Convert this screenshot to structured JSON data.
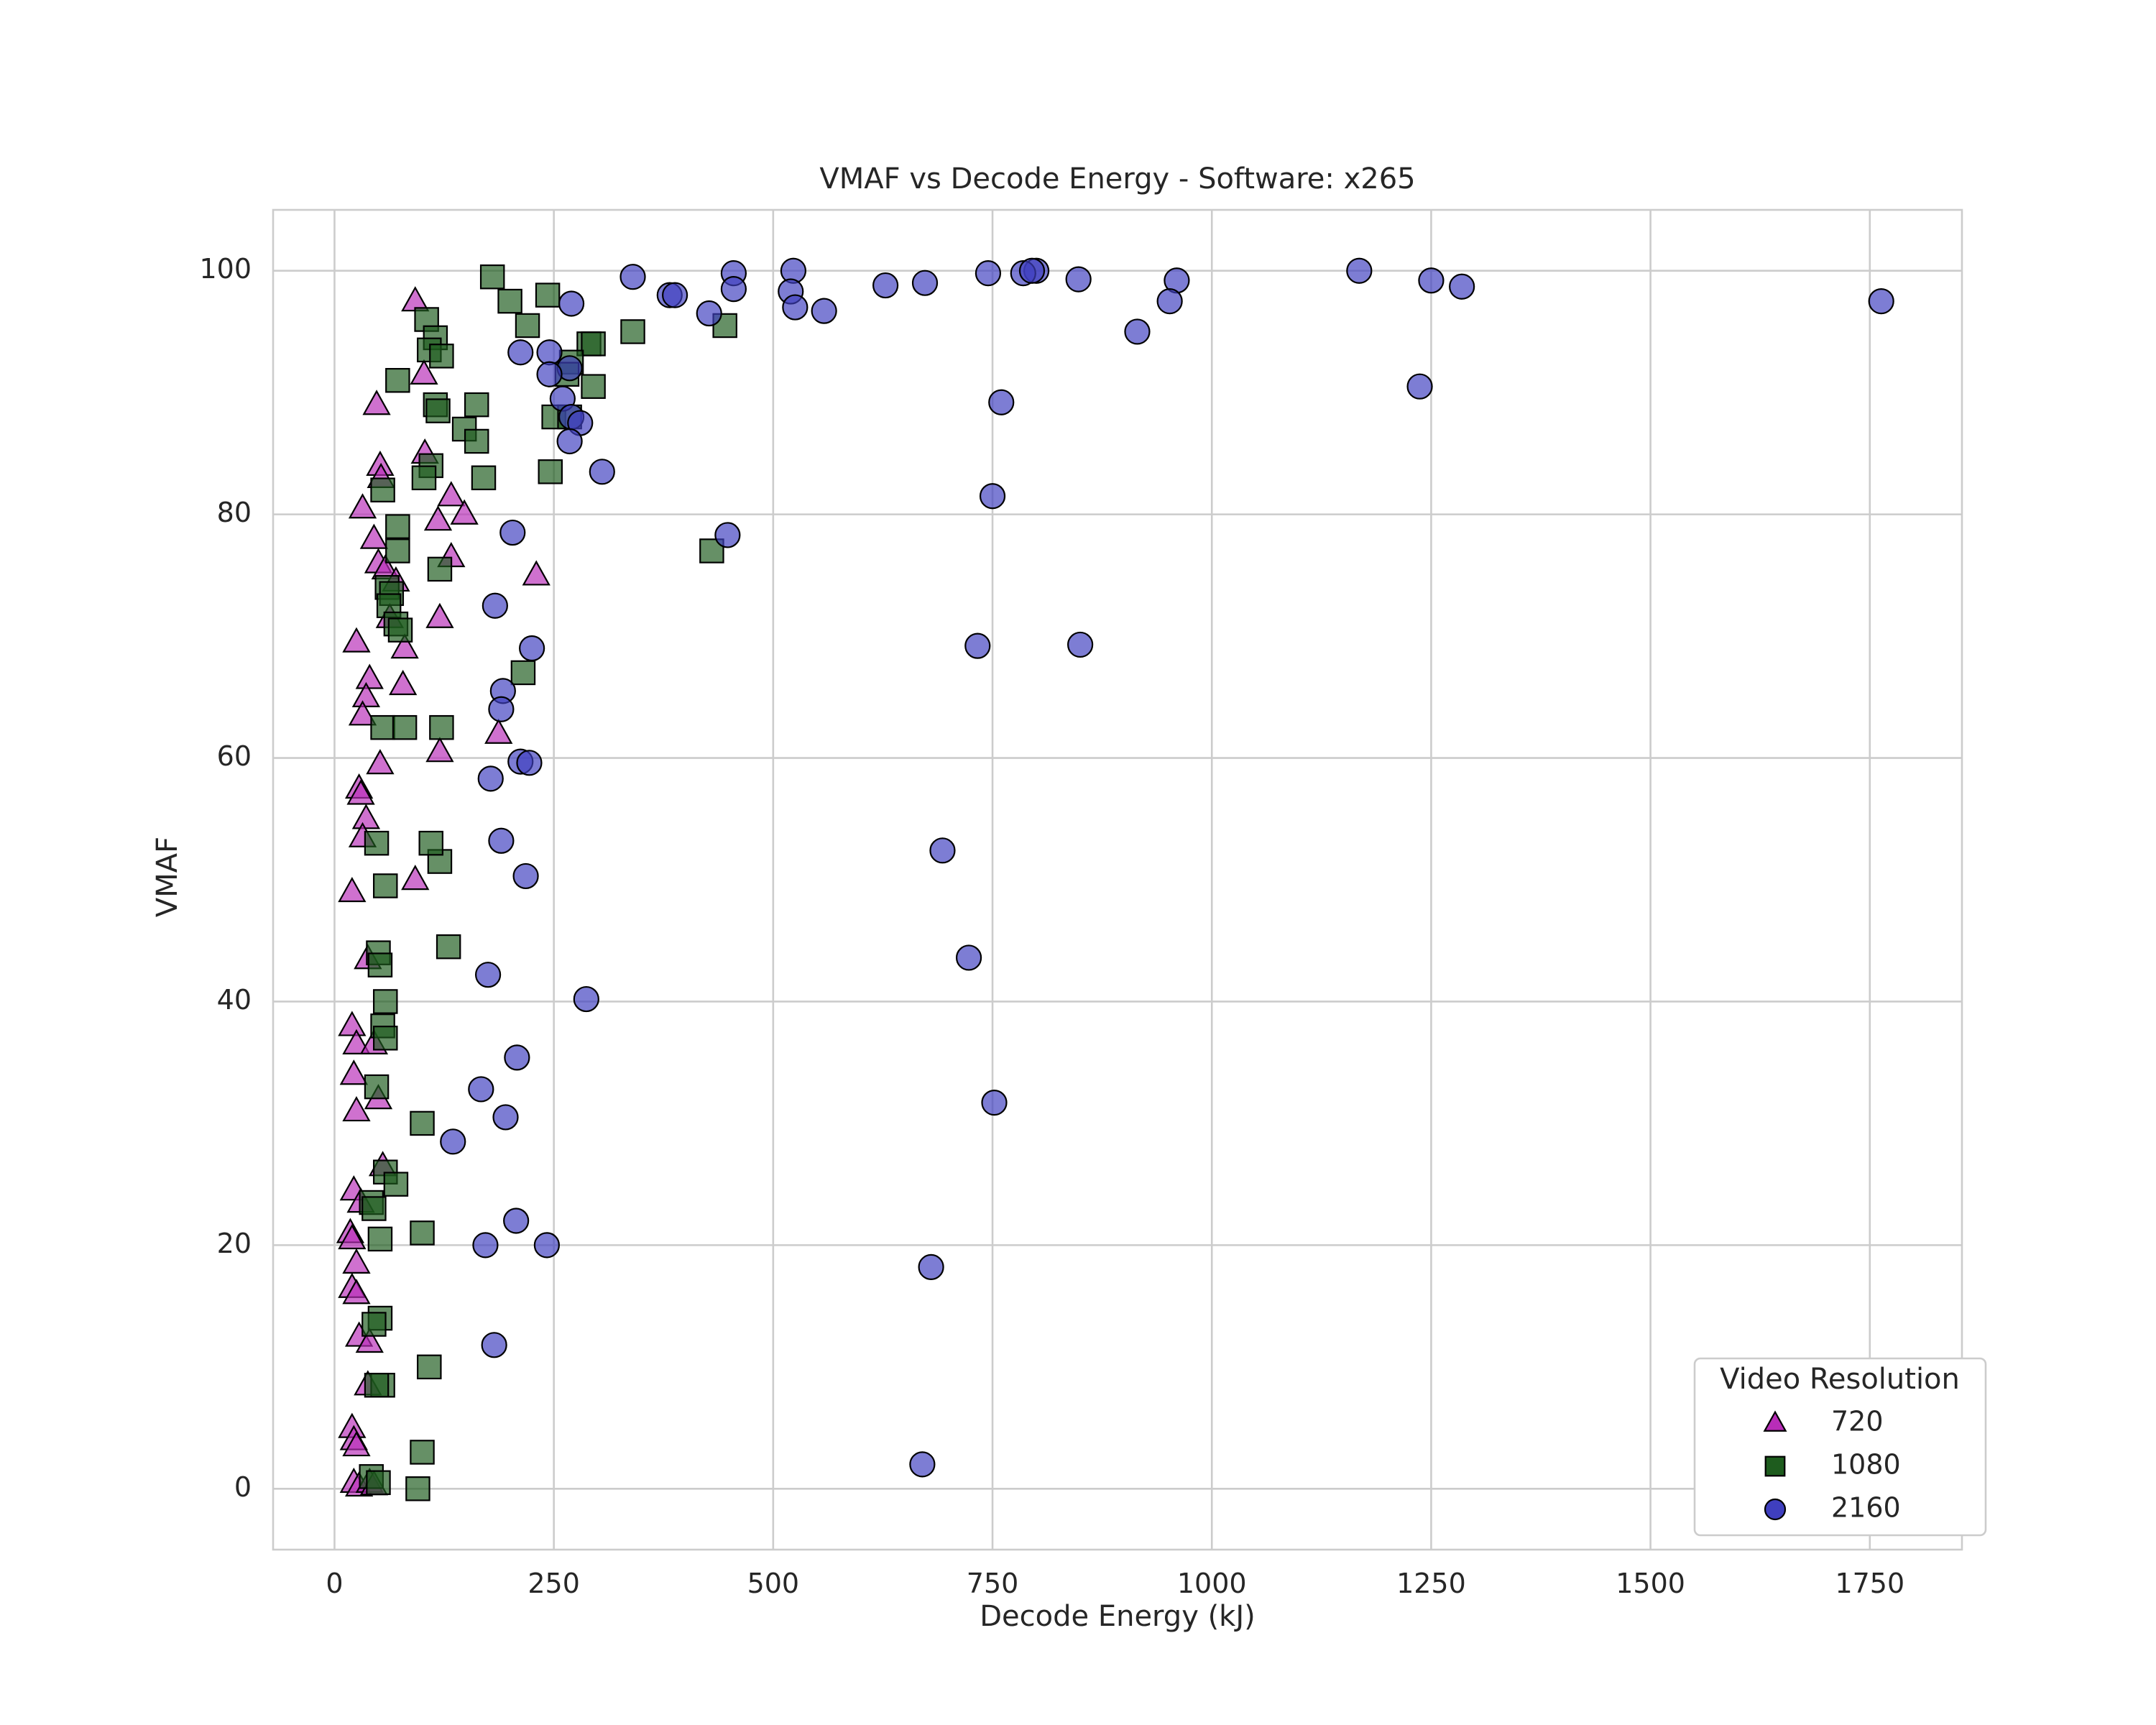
{
  "chart_data": {
    "type": "scatter",
    "title": "VMAF vs Decode Energy - Software: x265",
    "xlabel": "Decode Energy (kJ)",
    "ylabel": "VMAF",
    "xlim": [
      -70,
      1855
    ],
    "ylim": [
      -5,
      105
    ],
    "xticks": [
      0,
      250,
      500,
      750,
      1000,
      1250,
      1500,
      1750
    ],
    "yticks": [
      0,
      20,
      40,
      60,
      80,
      100
    ],
    "xtick_labels": [
      "0",
      "250",
      "500",
      "750",
      "1000",
      "1250",
      "1500",
      "1750"
    ],
    "ytick_labels": [
      "0",
      "20",
      "40",
      "60",
      "80",
      "100"
    ],
    "grid": true,
    "legend": {
      "title": "Video Resolution",
      "placement": "lower-right"
    },
    "series": [
      {
        "name": "720",
        "marker": "triangle",
        "color": "#b82db8",
        "points": [
          [
            92,
            97.5
          ],
          [
            102,
            91.5
          ],
          [
            48,
            89
          ],
          [
            103,
            85
          ],
          [
            52,
            84
          ],
          [
            53,
            83
          ],
          [
            32,
            80.5
          ],
          [
            118,
            79.5
          ],
          [
            133,
            81.5
          ],
          [
            148,
            80
          ],
          [
            45,
            78
          ],
          [
            133,
            76.5
          ],
          [
            50,
            76
          ],
          [
            58,
            75.5
          ],
          [
            70,
            74.5
          ],
          [
            230,
            75
          ],
          [
            63,
            71.5
          ],
          [
            120,
            71.5
          ],
          [
            25,
            69.5
          ],
          [
            80,
            69
          ],
          [
            40,
            66.5
          ],
          [
            78,
            66
          ],
          [
            36,
            65
          ],
          [
            32,
            63.5
          ],
          [
            187,
            62
          ],
          [
            120,
            60.5
          ],
          [
            52,
            59.5
          ],
          [
            28,
            57.5
          ],
          [
            30,
            57
          ],
          [
            36,
            55
          ],
          [
            32,
            53.5
          ],
          [
            20,
            49
          ],
          [
            92,
            50
          ],
          [
            38,
            43.5
          ],
          [
            20,
            38
          ],
          [
            25,
            36.5
          ],
          [
            45,
            36.5
          ],
          [
            22,
            34
          ],
          [
            50,
            32
          ],
          [
            25,
            31
          ],
          [
            55,
            26.5
          ],
          [
            22,
            24.5
          ],
          [
            30,
            23.5
          ],
          [
            18,
            21
          ],
          [
            20,
            20.5
          ],
          [
            25,
            18.5
          ],
          [
            20,
            16.5
          ],
          [
            25,
            16
          ],
          [
            28,
            12.5
          ],
          [
            40,
            12
          ],
          [
            38,
            8.5
          ],
          [
            20,
            5
          ],
          [
            22,
            4
          ],
          [
            25,
            3.5
          ],
          [
            22,
            0.5
          ],
          [
            28,
            0.2
          ],
          [
            40,
            0.5
          ],
          [
            45,
            0.3
          ]
        ]
      },
      {
        "name": "1080",
        "marker": "square",
        "color": "#1e5c1e",
        "points": [
          [
            180,
            99.5
          ],
          [
            243,
            98
          ],
          [
            200,
            97.5
          ],
          [
            105,
            96
          ],
          [
            220,
            95.5
          ],
          [
            340,
            95
          ],
          [
            445,
            95.5
          ],
          [
            115,
            94.5
          ],
          [
            290,
            94
          ],
          [
            295,
            94
          ],
          [
            108,
            93.5
          ],
          [
            122,
            93
          ],
          [
            270,
            92.5
          ],
          [
            265,
            91.5
          ],
          [
            72,
            91
          ],
          [
            295,
            90.5
          ],
          [
            115,
            89
          ],
          [
            118,
            88.5
          ],
          [
            162,
            89
          ],
          [
            250,
            88
          ],
          [
            268,
            88
          ],
          [
            148,
            87
          ],
          [
            162,
            86
          ],
          [
            110,
            84
          ],
          [
            102,
            83
          ],
          [
            55,
            82
          ],
          [
            170,
            83
          ],
          [
            246,
            83.5
          ],
          [
            72,
            79
          ],
          [
            72,
            77
          ],
          [
            120,
            75.5
          ],
          [
            430,
            77
          ],
          [
            60,
            74
          ],
          [
            65,
            73.5
          ],
          [
            62,
            72.5
          ],
          [
            70,
            71
          ],
          [
            75,
            70.5
          ],
          [
            215,
            67
          ],
          [
            55,
            62.5
          ],
          [
            80,
            62.5
          ],
          [
            122,
            62.5
          ],
          [
            120,
            51.5
          ],
          [
            110,
            53
          ],
          [
            48,
            53
          ],
          [
            58,
            49.5
          ],
          [
            130,
            44.5
          ],
          [
            50,
            44
          ],
          [
            52,
            43
          ],
          [
            58,
            40
          ],
          [
            55,
            38
          ],
          [
            58,
            37
          ],
          [
            48,
            33
          ],
          [
            100,
            30
          ],
          [
            58,
            26
          ],
          [
            70,
            25
          ],
          [
            42,
            23.5
          ],
          [
            45,
            23
          ],
          [
            100,
            21
          ],
          [
            52,
            20.5
          ],
          [
            52,
            14
          ],
          [
            45,
            13.5
          ],
          [
            108,
            10
          ],
          [
            55,
            8.5
          ],
          [
            48,
            8.5
          ],
          [
            100,
            3
          ],
          [
            42,
            1
          ],
          [
            50,
            0.5
          ],
          [
            95,
            0
          ]
        ]
      },
      {
        "name": "2160",
        "marker": "circle",
        "color": "#3f3fbf",
        "points": [
          [
            523,
            100
          ],
          [
            800,
            100
          ],
          [
            1168,
            100
          ],
          [
            455,
            99.8
          ],
          [
            340,
            99.5
          ],
          [
            785,
            99.8
          ],
          [
            795,
            100
          ],
          [
            745,
            99.8
          ],
          [
            673,
            99
          ],
          [
            628,
            98.8
          ],
          [
            848,
            99.3
          ],
          [
            960,
            99.2
          ],
          [
            1250,
            99.2
          ],
          [
            1285,
            98.7
          ],
          [
            455,
            98.5
          ],
          [
            520,
            98.3
          ],
          [
            382,
            98
          ],
          [
            388,
            98
          ],
          [
            1763,
            97.5
          ],
          [
            270,
            97.3
          ],
          [
            952,
            97.5
          ],
          [
            427,
            96.5
          ],
          [
            525,
            97
          ],
          [
            558,
            96.7
          ],
          [
            915,
            95
          ],
          [
            245,
            93.3
          ],
          [
            212,
            93.3
          ],
          [
            268,
            92
          ],
          [
            245,
            91.5
          ],
          [
            260,
            89.5
          ],
          [
            760,
            89.2
          ],
          [
            1237,
            90.5
          ],
          [
            270,
            88
          ],
          [
            280,
            87.5
          ],
          [
            268,
            86
          ],
          [
            305,
            83.5
          ],
          [
            750,
            81.5
          ],
          [
            203,
            78.5
          ],
          [
            448,
            78.3
          ],
          [
            183,
            72.5
          ],
          [
            225,
            69
          ],
          [
            733,
            69.2
          ],
          [
            850,
            69.3
          ],
          [
            192,
            65.5
          ],
          [
            190,
            64
          ],
          [
            212,
            59.7
          ],
          [
            222,
            59.6
          ],
          [
            178,
            58.3
          ],
          [
            190,
            53.2
          ],
          [
            693,
            52.4
          ],
          [
            218,
            50.3
          ],
          [
            175,
            42.2
          ],
          [
            287,
            40.2
          ],
          [
            723,
            43.6
          ],
          [
            208,
            35.4
          ],
          [
            167,
            32.8
          ],
          [
            752,
            31.7
          ],
          [
            195,
            30.5
          ],
          [
            135,
            28.5
          ],
          [
            207,
            22
          ],
          [
            172,
            20
          ],
          [
            242,
            20
          ],
          [
            680,
            18.2
          ],
          [
            182,
            11.8
          ],
          [
            670,
            2
          ]
        ]
      }
    ]
  }
}
